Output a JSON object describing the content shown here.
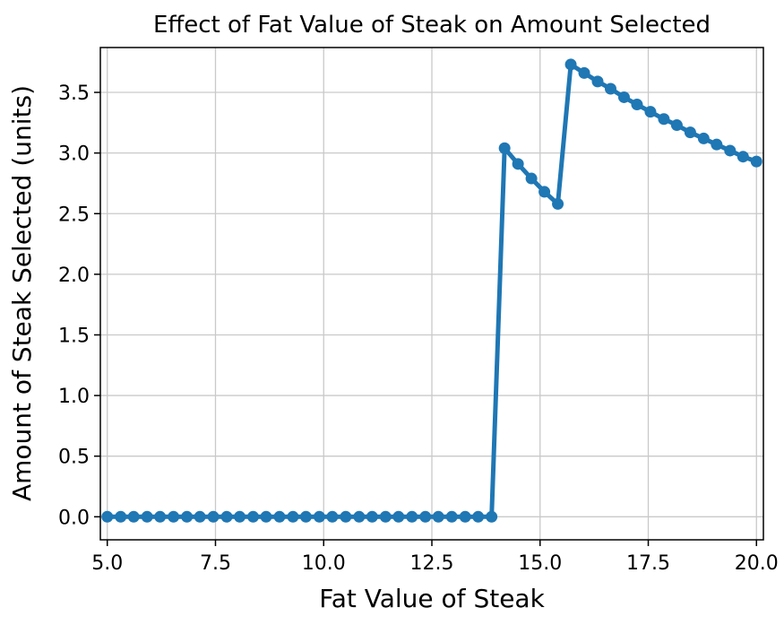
{
  "chart_data": {
    "type": "line",
    "title": "Effect of Fat Value of Steak on Amount Selected",
    "xlabel": "Fat Value of Steak",
    "ylabel": "Amount of Steak Selected (units)",
    "xlim": [
      4.84,
      20.16
    ],
    "ylim": [
      -0.19,
      3.87
    ],
    "xticks": [
      5.0,
      7.5,
      10.0,
      12.5,
      15.0,
      17.5,
      20.0
    ],
    "xtick_labels": [
      "5.0",
      "7.5",
      "10.0",
      "12.5",
      "15.0",
      "17.5",
      "20.0"
    ],
    "yticks": [
      0.0,
      0.5,
      1.0,
      1.5,
      2.0,
      2.5,
      3.0,
      3.5
    ],
    "ytick_labels": [
      "0.0",
      "0.5",
      "1.0",
      "1.5",
      "2.0",
      "2.5",
      "3.0",
      "3.5"
    ],
    "grid": true,
    "legend": "none",
    "series_color": "#1f77b4",
    "series": [
      {
        "x": [
          5.0,
          5.31,
          5.61,
          5.92,
          6.22,
          6.53,
          6.84,
          7.14,
          7.45,
          7.76,
          8.06,
          8.37,
          8.67,
          8.98,
          9.29,
          9.59,
          9.9,
          10.2,
          10.51,
          10.82,
          11.12,
          11.43,
          11.73,
          12.04,
          12.35,
          12.65,
          12.96,
          13.27,
          13.57,
          13.88,
          14.18,
          14.49,
          14.8,
          15.1,
          15.41,
          15.71,
          16.02,
          16.33,
          16.63,
          16.94,
          17.24,
          17.55,
          17.86,
          18.16,
          18.47,
          18.78,
          19.08,
          19.39,
          19.69,
          20.0
        ],
        "y": [
          0,
          0,
          0,
          0,
          0,
          0,
          0,
          0,
          0,
          0,
          0,
          0,
          0,
          0,
          0,
          0,
          0,
          0,
          0,
          0,
          0,
          0,
          0,
          0,
          0,
          0,
          0,
          0,
          0,
          0,
          3.04,
          2.91,
          2.79,
          2.68,
          2.58,
          3.73,
          3.66,
          3.59,
          3.53,
          3.46,
          3.4,
          3.34,
          3.28,
          3.23,
          3.17,
          3.12,
          3.07,
          3.02,
          2.97,
          2.93
        ]
      }
    ]
  }
}
